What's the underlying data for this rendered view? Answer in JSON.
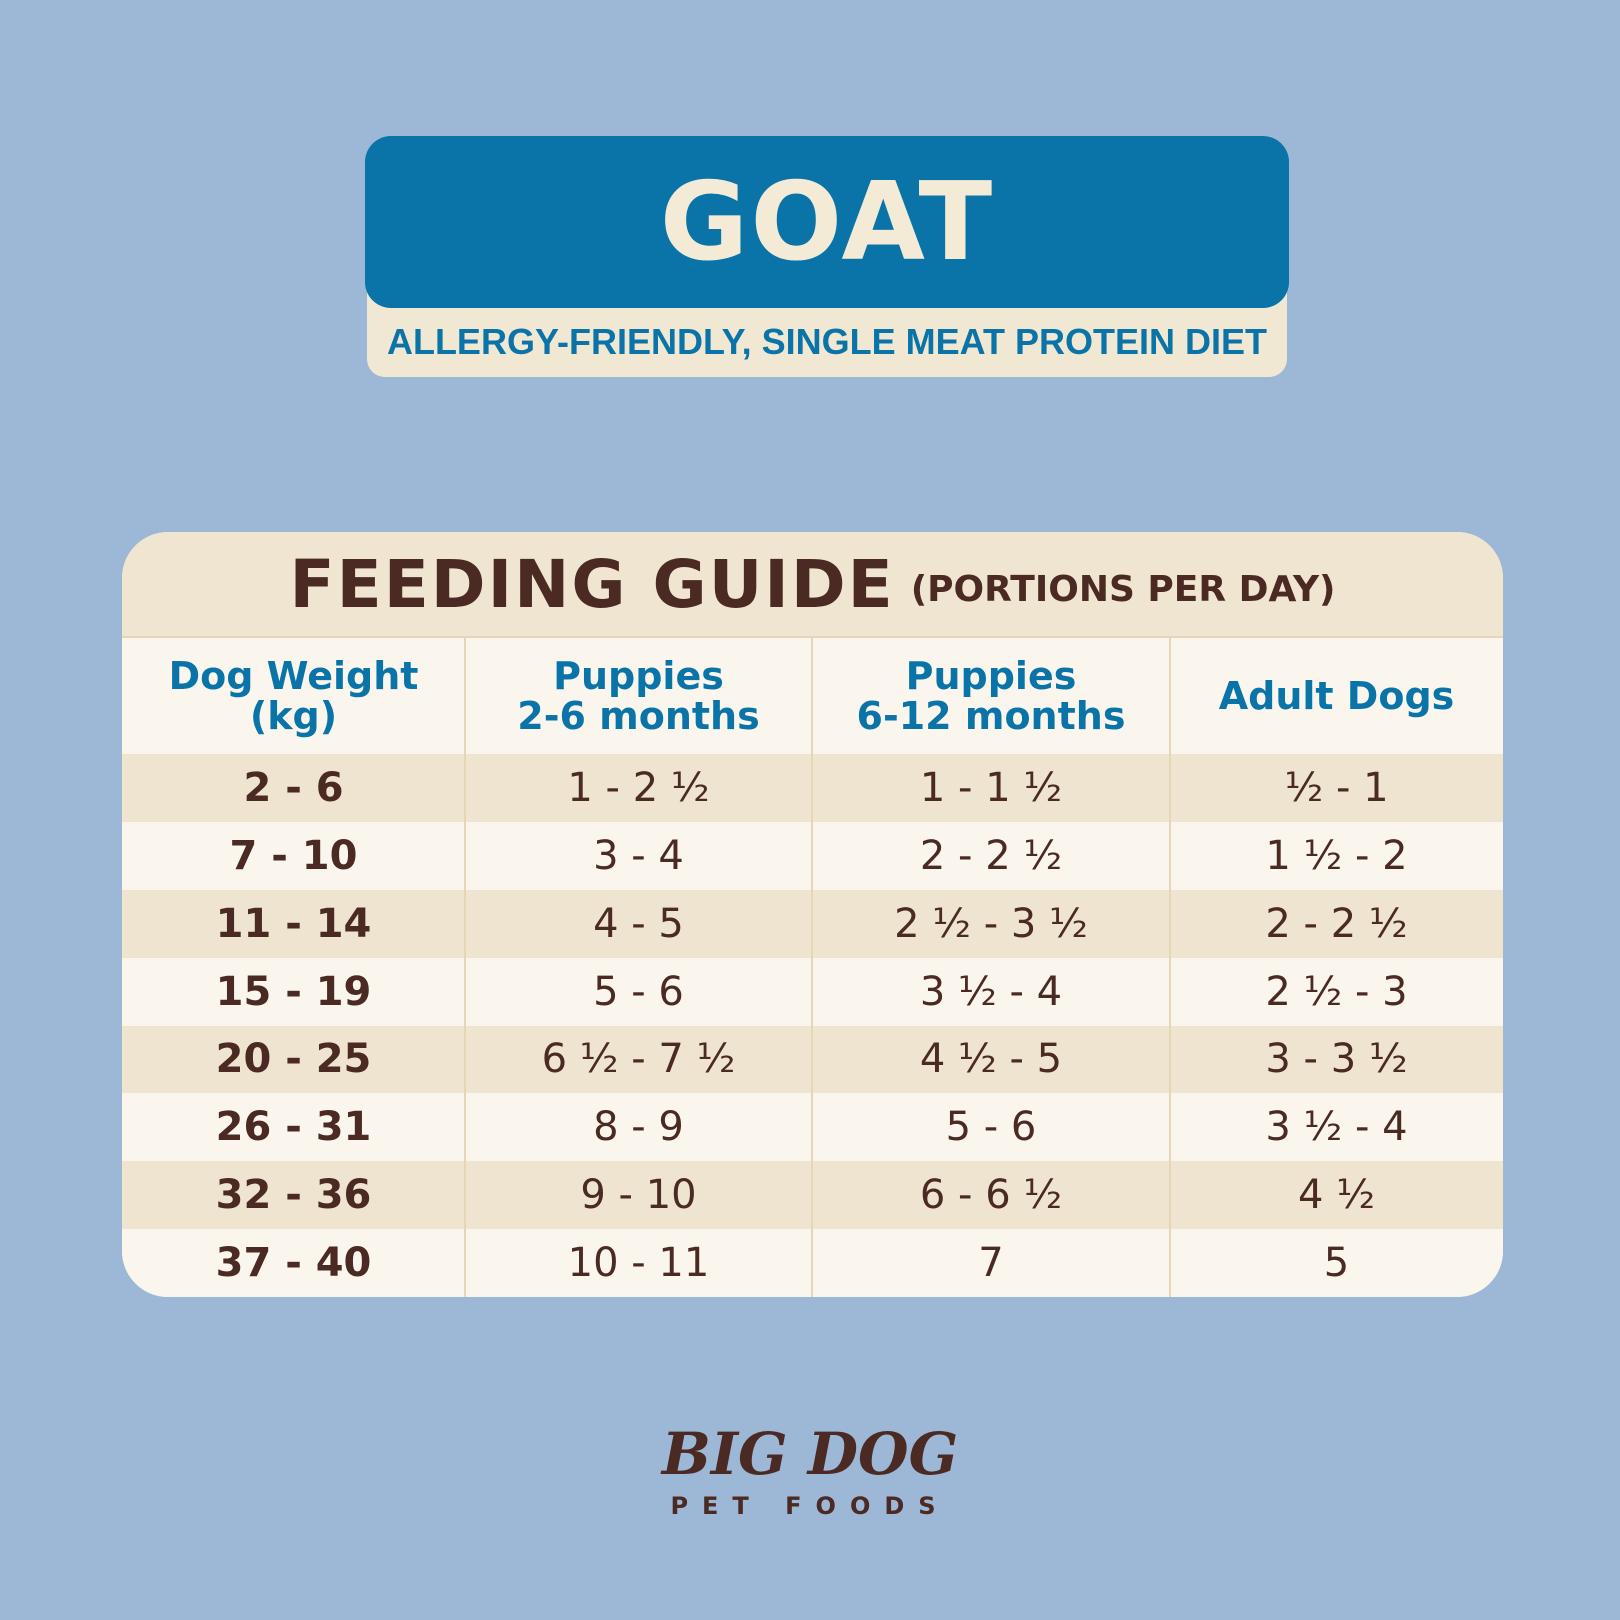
{
  "banner": {
    "title": "GOAT",
    "subtitle": "ALLERGY-FRIENDLY, SINGLE MEAT PROTEIN DIET"
  },
  "table": {
    "title": "FEEDING GUIDE",
    "title_note": "(PORTIONS PER DAY)",
    "header": [
      [
        "Dog Weight",
        "(kg)"
      ],
      [
        "Puppies",
        "2-6 months"
      ],
      [
        "Puppies",
        "6-12 months"
      ],
      [
        "Adult Dogs"
      ]
    ],
    "rows": [
      [
        "2 - 6",
        "1 - 2 ½",
        "1 - 1 ½",
        "½ - 1"
      ],
      [
        "7 - 10",
        "3 - 4",
        "2 - 2 ½",
        "1 ½ - 2"
      ],
      [
        "11 - 14",
        "4 - 5",
        "2 ½ - 3 ½",
        "2 - 2 ½"
      ],
      [
        "15 - 19",
        "5 - 6",
        "3 ½ - 4",
        "2 ½ - 3"
      ],
      [
        "20 - 25",
        "6 ½ - 7 ½",
        "4 ½ - 5",
        "3 - 3 ½"
      ],
      [
        "26 - 31",
        "8 - 9",
        "5 - 6",
        "3 ½ - 4"
      ],
      [
        "32 - 36",
        "9 - 10",
        "6 - 6 ½",
        "4 ½"
      ],
      [
        "37 - 40",
        "10 - 11",
        "7",
        "5"
      ]
    ]
  },
  "logo": {
    "name": "BIG DOG",
    "tagline": "PET FOODS"
  }
}
